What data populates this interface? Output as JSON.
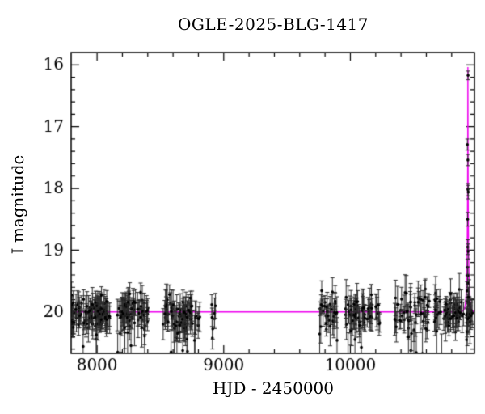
{
  "chart_data": {
    "type": "scatter",
    "title": "OGLE-2025-BLG-1417",
    "xlabel": "HJD - 2450000",
    "ylabel": "I magnitude",
    "xlim": [
      7795,
      10980
    ],
    "ylim": [
      15.8,
      20.67
    ],
    "y_inverted": true,
    "grid": false,
    "x_major_ticks": [
      8000,
      9000,
      10000
    ],
    "x_minor_step": 200,
    "y_major_ticks": [
      16,
      17,
      18,
      19,
      20
    ],
    "y_minor_step": 0.2,
    "colors": {
      "background": "#ffffff",
      "frame": "#000000",
      "points": "#000000",
      "error_bars": "#2a2a2a",
      "model_line": "#ee00ee"
    },
    "marker": {
      "shape": "circle",
      "radius": 1.8
    },
    "model": {
      "type": "paczynski-microlensing",
      "baseline_mag": 20.0,
      "t0": 10928,
      "tE": 13,
      "u0": 0.026,
      "peak_mag": 16.04
    },
    "baseline_seasons": [
      {
        "t_start": 7796,
        "t_end": 8100,
        "n": 95,
        "mag_mean": 20.0,
        "mag_sigma": 0.12,
        "err_min": 0.1,
        "err_max": 0.28
      },
      {
        "t_start": 8160,
        "t_end": 8400,
        "n": 70,
        "mag_mean": 19.99,
        "mag_sigma": 0.12,
        "err_min": 0.1,
        "err_max": 0.28
      },
      {
        "t_start": 8520,
        "t_end": 8825,
        "n": 80,
        "mag_mean": 20.02,
        "mag_sigma": 0.14,
        "err_min": 0.1,
        "err_max": 0.3
      },
      {
        "t_start": 8900,
        "t_end": 8940,
        "n": 7,
        "mag_mean": 20.0,
        "mag_sigma": 0.2,
        "err_min": 0.12,
        "err_max": 0.25
      },
      {
        "t_start": 9740,
        "t_end": 9895,
        "n": 32,
        "mag_mean": 19.98,
        "mag_sigma": 0.14,
        "err_min": 0.1,
        "err_max": 0.3
      },
      {
        "t_start": 9950,
        "t_end": 10235,
        "n": 60,
        "mag_mean": 20.03,
        "mag_sigma": 0.16,
        "err_min": 0.1,
        "err_max": 0.32
      },
      {
        "t_start": 10340,
        "t_end": 10625,
        "n": 55,
        "mag_mean": 20.02,
        "mag_sigma": 0.15,
        "err_min": 0.1,
        "err_max": 0.3
      },
      {
        "t_start": 10660,
        "t_end": 10965,
        "n": 80,
        "mag_mean": 20.0,
        "mag_sigma": 0.14,
        "err_min": 0.1,
        "err_max": 0.3
      }
    ],
    "peak_points": [
      {
        "t": 10929.5,
        "mag": 16.17,
        "err": 0.07
      },
      {
        "t": 10924.0,
        "mag": 17.29,
        "err": 0.09
      },
      {
        "t": 10928.0,
        "mag": 17.54,
        "err": 0.09
      },
      {
        "t": 10928.6,
        "mag": 18.02,
        "err": 0.1
      },
      {
        "t": 10931.0,
        "mag": 18.06,
        "err": 0.11
      },
      {
        "t": 10926.0,
        "mag": 18.5,
        "err": 0.11
      },
      {
        "t": 10926.8,
        "mag": 18.95,
        "err": 0.12
      },
      {
        "t": 10930.0,
        "mag": 19.02,
        "err": 0.12
      },
      {
        "t": 10924.5,
        "mag": 19.28,
        "err": 0.13
      },
      {
        "t": 10928.3,
        "mag": 19.41,
        "err": 0.14
      },
      {
        "t": 10926.5,
        "mag": 19.53,
        "err": 0.14
      },
      {
        "t": 10922.0,
        "mag": 19.66,
        "err": 0.15
      },
      {
        "t": 10932.0,
        "mag": 19.76,
        "err": 0.16
      }
    ],
    "outlier_fraction": 0.09,
    "seed": 141706
  }
}
